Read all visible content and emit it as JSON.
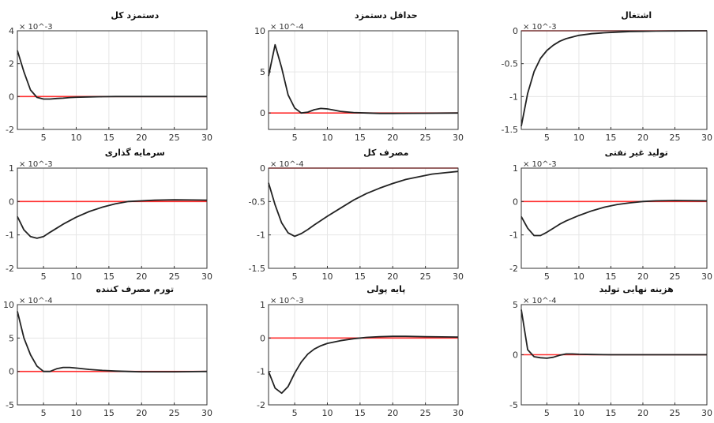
{
  "colors": {
    "zero_line": "#ff3030",
    "response_line": "#222222",
    "grid": "#e6e6e6",
    "axes": "#333333"
  },
  "chart_data": [
    {
      "type": "line",
      "title": "دستمزد کل",
      "exponent": "× 10^-3",
      "xlim": [
        1,
        30
      ],
      "ylim": [
        -2,
        4
      ],
      "yticks": [
        -2,
        0,
        2,
        4
      ],
      "xticks": [
        5,
        10,
        15,
        20,
        25,
        30
      ],
      "x": [
        1,
        2,
        3,
        4,
        5,
        6,
        7,
        8,
        9,
        10,
        12,
        14,
        16,
        18,
        20,
        25,
        30
      ],
      "series": [
        {
          "values": [
            2.8,
            1.5,
            0.4,
            -0.05,
            -0.15,
            -0.15,
            -0.12,
            -0.1,
            -0.06,
            -0.04,
            -0.02,
            -0.01,
            0,
            0,
            0,
            0,
            0
          ]
        }
      ]
    },
    {
      "type": "line",
      "title": "حداقل دستمزد",
      "exponent": "× 10^-4",
      "xlim": [
        1,
        30
      ],
      "ylim": [
        -2,
        10
      ],
      "yticks": [
        0,
        5,
        10
      ],
      "xticks": [
        5,
        10,
        15,
        20,
        25,
        30
      ],
      "x": [
        1,
        2,
        3,
        4,
        5,
        6,
        7,
        8,
        9,
        10,
        11,
        12,
        14,
        16,
        18,
        20,
        25,
        30
      ],
      "series": [
        {
          "values": [
            4.5,
            8.3,
            5.5,
            2.2,
            0.6,
            0,
            0.1,
            0.4,
            0.55,
            0.5,
            0.35,
            0.2,
            0.05,
            0,
            -0.05,
            -0.05,
            -0.03,
            0
          ]
        }
      ]
    },
    {
      "type": "line",
      "title": "اشتغال",
      "exponent": "× 10^-3",
      "xlim": [
        1,
        30
      ],
      "ylim": [
        -1.5,
        0
      ],
      "yticks": [
        -1.5,
        -1,
        -0.5,
        0
      ],
      "xticks": [
        5,
        10,
        15,
        20,
        25,
        30
      ],
      "x": [
        1,
        2,
        3,
        4,
        5,
        6,
        7,
        8,
        10,
        12,
        14,
        16,
        18,
        20,
        22,
        25,
        30
      ],
      "series": [
        {
          "values": [
            -1.45,
            -0.95,
            -0.62,
            -0.42,
            -0.3,
            -0.22,
            -0.16,
            -0.12,
            -0.07,
            -0.045,
            -0.03,
            -0.02,
            -0.012,
            -0.008,
            -0.005,
            -0.002,
            0
          ]
        }
      ]
    },
    {
      "type": "line",
      "title": "سرمایه گذاری",
      "exponent": "× 10^-3",
      "xlim": [
        1,
        30
      ],
      "ylim": [
        -2,
        1
      ],
      "yticks": [
        -2,
        -1,
        0,
        1
      ],
      "xticks": [
        5,
        10,
        15,
        20,
        25,
        30
      ],
      "x": [
        1,
        2,
        3,
        4,
        5,
        6,
        7,
        8,
        10,
        12,
        14,
        16,
        18,
        20,
        22,
        25,
        30
      ],
      "series": [
        {
          "values": [
            -0.45,
            -0.85,
            -1.05,
            -1.1,
            -1.05,
            -0.92,
            -0.8,
            -0.68,
            -0.47,
            -0.3,
            -0.17,
            -0.07,
            0,
            0.02,
            0.04,
            0.05,
            0.04
          ]
        }
      ]
    },
    {
      "type": "line",
      "title": "مصرف کل",
      "exponent": "× 10^-4",
      "xlim": [
        1,
        30
      ],
      "ylim": [
        -1.5,
        0
      ],
      "yticks": [
        -1.5,
        -1,
        -0.5,
        0
      ],
      "xticks": [
        5,
        10,
        15,
        20,
        25,
        30
      ],
      "x": [
        1,
        2,
        3,
        4,
        5,
        6,
        7,
        8,
        10,
        12,
        14,
        16,
        18,
        20,
        22,
        24,
        26,
        28,
        30
      ],
      "series": [
        {
          "values": [
            -0.22,
            -0.55,
            -0.82,
            -0.97,
            -1.02,
            -0.98,
            -0.92,
            -0.85,
            -0.72,
            -0.6,
            -0.48,
            -0.38,
            -0.3,
            -0.23,
            -0.17,
            -0.13,
            -0.09,
            -0.07,
            -0.05
          ]
        }
      ]
    },
    {
      "type": "line",
      "title": "تولید غیر نفتی",
      "exponent": "× 10^-3",
      "xlim": [
        1,
        30
      ],
      "ylim": [
        -2,
        1
      ],
      "yticks": [
        -2,
        -1,
        0,
        1
      ],
      "xticks": [
        5,
        10,
        15,
        20,
        25,
        30
      ],
      "x": [
        1,
        2,
        3,
        4,
        5,
        6,
        7,
        8,
        10,
        12,
        14,
        16,
        18,
        20,
        22,
        25,
        30
      ],
      "series": [
        {
          "values": [
            -0.45,
            -0.8,
            -1.02,
            -1.02,
            -0.92,
            -0.8,
            -0.68,
            -0.58,
            -0.42,
            -0.28,
            -0.17,
            -0.09,
            -0.04,
            0,
            0.02,
            0.03,
            0.02
          ]
        }
      ]
    },
    {
      "type": "line",
      "title": "تورم مصرف کننده",
      "exponent": "× 10^-4",
      "xlim": [
        1,
        30
      ],
      "ylim": [
        -5,
        10
      ],
      "yticks": [
        -5,
        0,
        5,
        10
      ],
      "xticks": [
        5,
        10,
        15,
        20,
        25,
        30
      ],
      "x": [
        1,
        2,
        3,
        4,
        5,
        6,
        7,
        8,
        9,
        10,
        12,
        14,
        16,
        18,
        20,
        25,
        30
      ],
      "series": [
        {
          "values": [
            9,
            5,
            2.5,
            0.8,
            0,
            0,
            0.4,
            0.6,
            0.6,
            0.5,
            0.3,
            0.15,
            0.05,
            0,
            -0.05,
            -0.05,
            0
          ]
        }
      ]
    },
    {
      "type": "line",
      "title": "پایه پولی",
      "exponent": "× 10^-3",
      "xlim": [
        1,
        30
      ],
      "ylim": [
        -2,
        1
      ],
      "yticks": [
        -2,
        -1,
        0,
        1
      ],
      "xticks": [
        5,
        10,
        15,
        20,
        25,
        30
      ],
      "x": [
        1,
        2,
        3,
        4,
        5,
        6,
        7,
        8,
        9,
        10,
        12,
        14,
        16,
        18,
        20,
        22,
        25,
        30
      ],
      "series": [
        {
          "values": [
            -1,
            -1.5,
            -1.65,
            -1.45,
            -1.05,
            -0.72,
            -0.48,
            -0.33,
            -0.23,
            -0.16,
            -0.08,
            -0.02,
            0.02,
            0.04,
            0.05,
            0.05,
            0.04,
            0.03
          ]
        }
      ]
    },
    {
      "type": "line",
      "title": "هزینه نهایی تولید",
      "exponent": "× 10^-4",
      "xlim": [
        1,
        30
      ],
      "ylim": [
        -5,
        5
      ],
      "yticks": [
        -5,
        0,
        5
      ],
      "xticks": [
        5,
        10,
        15,
        20,
        25,
        30
      ],
      "x": [
        1,
        2,
        3,
        4,
        5,
        6,
        7,
        8,
        9,
        10,
        12,
        15,
        20,
        25,
        30
      ],
      "series": [
        {
          "values": [
            4.5,
            0.5,
            -0.2,
            -0.3,
            -0.35,
            -0.25,
            -0.05,
            0.08,
            0.08,
            0.05,
            0.02,
            0,
            0,
            0,
            0
          ]
        }
      ]
    }
  ]
}
